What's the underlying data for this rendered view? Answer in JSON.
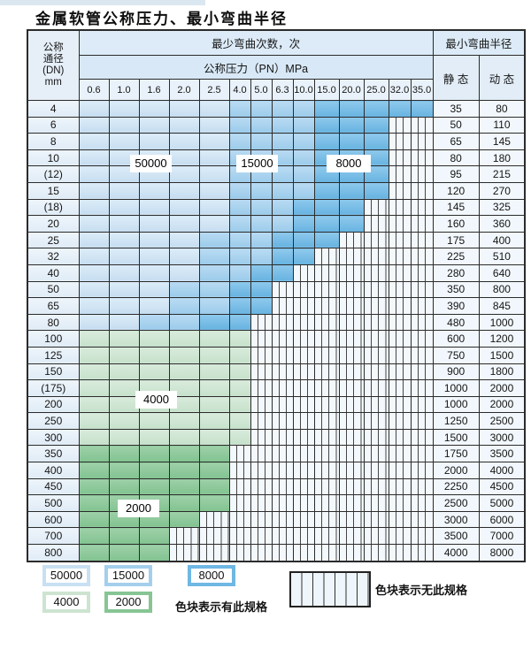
{
  "title": "金属软管公称压力、最小弯曲半径",
  "table": {
    "corner": {
      "line1": "公称",
      "line2": "通径",
      "line3": "(DN)",
      "line4": "mm"
    },
    "header_cycles": "最少弯曲次数，次",
    "header_pressure": "公称压力（PN）MPa",
    "header_radius": "最小弯曲半径",
    "static_label": "静 态",
    "dynamic_label": "动 态",
    "pressure_columns": [
      "0.6",
      "1.0",
      "1.6",
      "2.0",
      "2.5",
      "4.0",
      "5.0",
      "6.3",
      "10.0",
      "15.0",
      "20.0",
      "25.0",
      "32.0",
      "35.0"
    ],
    "cell_code_legend": {
      "L": "50000 cycles",
      "M": "15000 cycles",
      "D": "8000 cycles",
      "G": "4000 cycles",
      "g": "2000 cycles",
      "X": "no specification"
    },
    "rows": [
      {
        "dn": "4",
        "cells": "LLLLLMMMMDDDDD",
        "static": "35",
        "dynamic": "80"
      },
      {
        "dn": "6",
        "cells": "LLLLLMMMMDDDXX",
        "static": "50",
        "dynamic": "110"
      },
      {
        "dn": "8",
        "cells": "LLLLLMMMMDDDXX",
        "static": "65",
        "dynamic": "145"
      },
      {
        "dn": "10",
        "cells": "LLLLLMMMMDDDXX",
        "static": "80",
        "dynamic": "180"
      },
      {
        "dn": "(12)",
        "cells": "LLLLLMMMMDDDXX",
        "static": "95",
        "dynamic": "215"
      },
      {
        "dn": "15",
        "cells": "LLLLLMMMMDDDXX",
        "static": "120",
        "dynamic": "270"
      },
      {
        "dn": "(18)",
        "cells": "LLLLLMMMDDDXXX",
        "static": "145",
        "dynamic": "325"
      },
      {
        "dn": "20",
        "cells": "LLLLLMMMDDDXXX",
        "static": "160",
        "dynamic": "360"
      },
      {
        "dn": "25",
        "cells": "LLLLMMMDDDXXXX",
        "static": "175",
        "dynamic": "400"
      },
      {
        "dn": "32",
        "cells": "LLLLMMMDDXXXXX",
        "static": "225",
        "dynamic": "510"
      },
      {
        "dn": "40",
        "cells": "LLLLMMDDXXXXXX",
        "static": "280",
        "dynamic": "640"
      },
      {
        "dn": "50",
        "cells": "LLLMMDDXXXXXXX",
        "static": "350",
        "dynamic": "800"
      },
      {
        "dn": "65",
        "cells": "LLLMMDDXXXXXXX",
        "static": "390",
        "dynamic": "845"
      },
      {
        "dn": "80",
        "cells": "LLMMDDXXXXXXXX",
        "static": "480",
        "dynamic": "1000"
      },
      {
        "dn": "100",
        "cells": "GGGGGGXXXXXXXX",
        "static": "600",
        "dynamic": "1200"
      },
      {
        "dn": "125",
        "cells": "GGGGGGXXXXXXXX",
        "static": "750",
        "dynamic": "1500"
      },
      {
        "dn": "150",
        "cells": "GGGGGGXXXXXXXX",
        "static": "900",
        "dynamic": "1800"
      },
      {
        "dn": "(175)",
        "cells": "GGGGGGXXXXXXXX",
        "static": "1000",
        "dynamic": "2000"
      },
      {
        "dn": "200",
        "cells": "GGGGGGXXXXXXXX",
        "static": "1000",
        "dynamic": "2000"
      },
      {
        "dn": "250",
        "cells": "GGGGGGXXXXXXXX",
        "static": "1250",
        "dynamic": "2500"
      },
      {
        "dn": "300",
        "cells": "GGGGGGXXXXXXXX",
        "static": "1500",
        "dynamic": "3000"
      },
      {
        "dn": "350",
        "cells": "gggggXXXXXXXXX",
        "static": "1750",
        "dynamic": "3500"
      },
      {
        "dn": "400",
        "cells": "gggggXXXXXXXXX",
        "static": "2000",
        "dynamic": "4000"
      },
      {
        "dn": "450",
        "cells": "gggggXXXXXXXXX",
        "static": "2250",
        "dynamic": "4500"
      },
      {
        "dn": "500",
        "cells": "gggggXXXXXXXXX",
        "static": "2500",
        "dynamic": "5000"
      },
      {
        "dn": "600",
        "cells": "ggggXXXXXXXXXX",
        "static": "3000",
        "dynamic": "6000"
      },
      {
        "dn": "700",
        "cells": "gggXXXXXXXXXXX",
        "static": "3500",
        "dynamic": "7000"
      },
      {
        "dn": "800",
        "cells": "gggXXXXXXXXXXX",
        "static": "4000",
        "dynamic": "8000"
      }
    ]
  },
  "zone_labels": {
    "l50000": "50000",
    "l15000": "15000",
    "l8000": "8000",
    "l4000": "4000",
    "l2000": "2000"
  },
  "legend": {
    "swatches": [
      {
        "label": "50000",
        "color": "#c9e0f2"
      },
      {
        "label": "15000",
        "color": "#a4cfec"
      },
      {
        "label": "8000",
        "color": "#6fb7e4"
      },
      {
        "label": "4000",
        "color": "#cde4d1"
      },
      {
        "label": "2000",
        "color": "#87c595"
      }
    ],
    "has_spec_text": "色块表示有此规格",
    "no_spec_text": "色块表示无此规格"
  },
  "colors": {
    "blue_50000": "#c9e0f2",
    "blue_15000": "#a4cfec",
    "blue_8000": "#6fb7e4",
    "green_4000": "#cde4d1",
    "green_2000": "#87c595",
    "hatch_background": "#f3f8fc",
    "grid_line": "#2b2b2b",
    "header_background": "#dcebf7"
  }
}
